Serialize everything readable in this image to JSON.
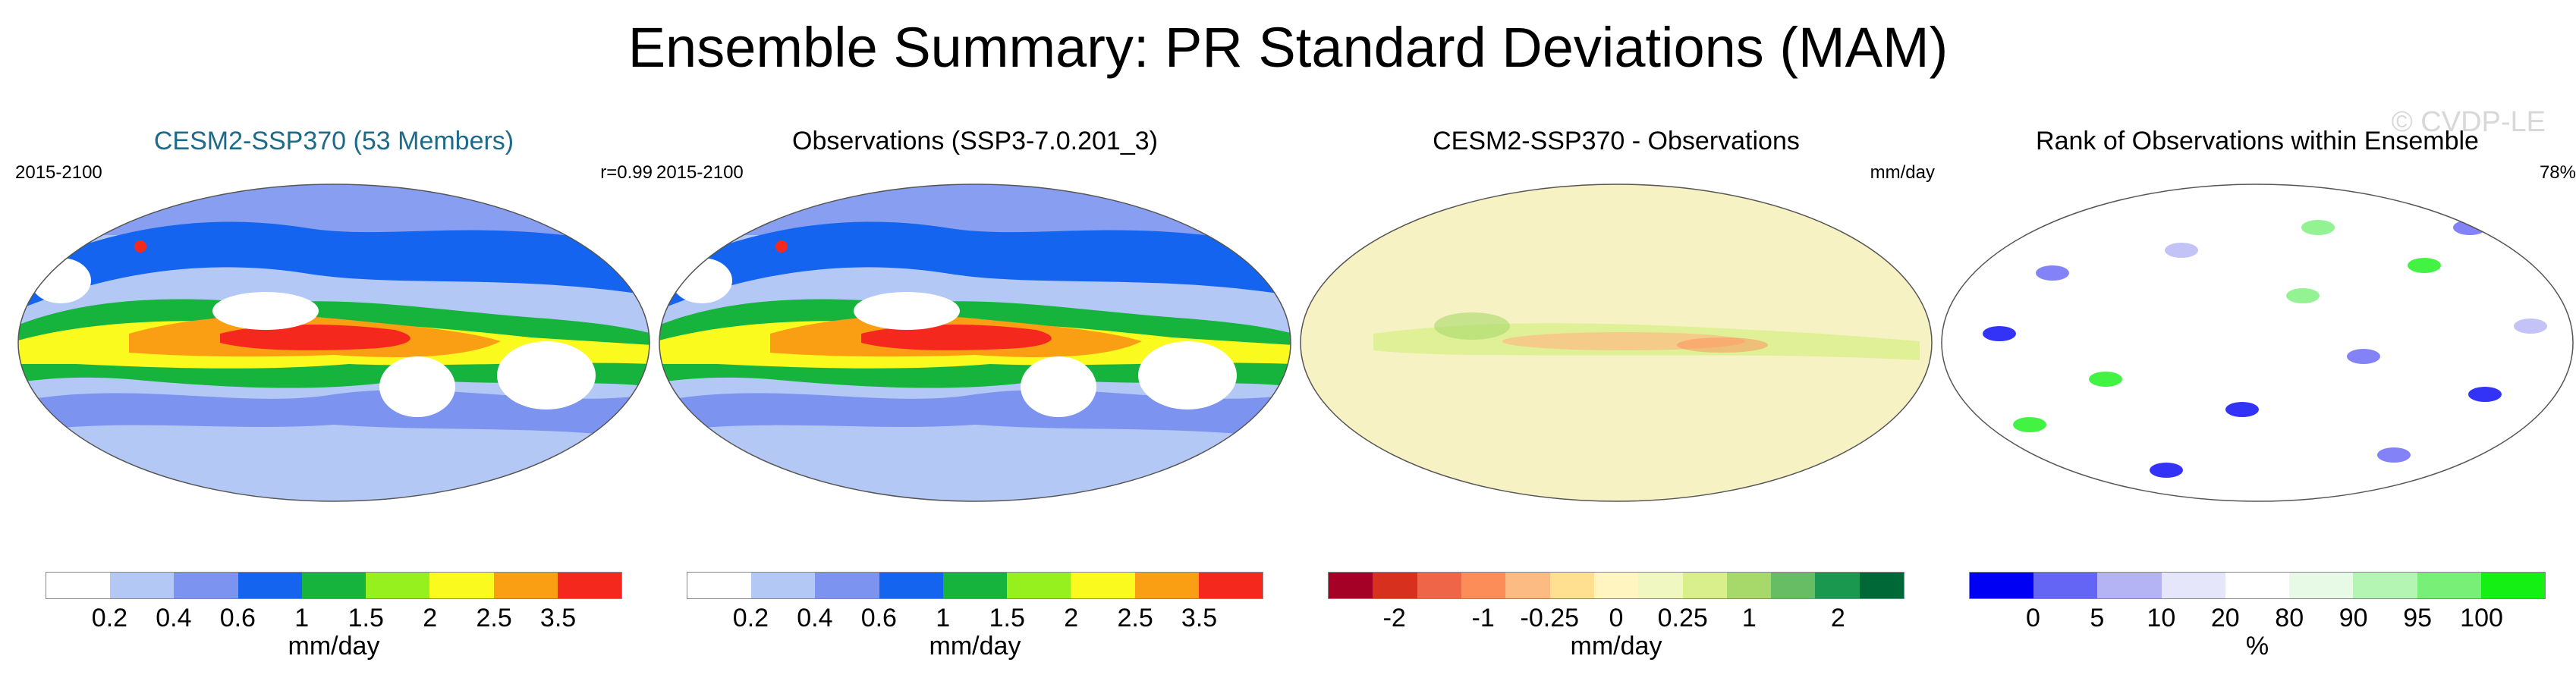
{
  "title": "Ensemble Summary: PR Standard Deviations (MAM)",
  "watermark": "© CVDP-LE",
  "panels": [
    {
      "title": "CESM2-SSP370 (53 Members)",
      "title_color": "#1d6b8a",
      "left_label": "2015-2100",
      "right_label": "r=0.99",
      "colors": [
        "#ffffff",
        "#b4c8f5",
        "#7c94f0",
        "#1464f0",
        "#16b43c",
        "#96f01e",
        "#fafa1e",
        "#fa9e14",
        "#f5281e"
      ],
      "ticks": [
        "0.2",
        "0.4",
        "0.6",
        "1",
        "1.5",
        "2",
        "2.5",
        "3.5"
      ],
      "units": "mm/day"
    },
    {
      "title": "Observations (SSP3-7.0.201_3)",
      "title_color": "#000000",
      "left_label": "2015-2100",
      "right_label": "",
      "colors": [
        "#ffffff",
        "#b4c8f5",
        "#7c94f0",
        "#1464f0",
        "#16b43c",
        "#96f01e",
        "#fafa1e",
        "#fa9e14",
        "#f5281e"
      ],
      "ticks": [
        "0.2",
        "0.4",
        "0.6",
        "1",
        "1.5",
        "2",
        "2.5",
        "3.5"
      ],
      "units": "mm/day"
    },
    {
      "title": "CESM2-SSP370 - Observations",
      "title_color": "#000000",
      "left_label": "",
      "right_label": "mm/day",
      "colors": [
        "#a50026",
        "#d7301f",
        "#ef6548",
        "#fc8d59",
        "#fdbb84",
        "#fee090",
        "#fff5c0",
        "#f0f7c0",
        "#d9ef8b",
        "#a6d96a",
        "#66bd63",
        "#1a9850",
        "#006837"
      ],
      "ticks": [
        "-2",
        "-1",
        "-0.25",
        "0",
        "0.25",
        "1",
        "2"
      ],
      "tick_positions": [
        1.5,
        3.5,
        5,
        6.5,
        8,
        9.5,
        11.5
      ],
      "units": "mm/day"
    },
    {
      "title": "Rank of Observations within Ensemble",
      "title_color": "#000000",
      "left_label": "",
      "right_label": "78%",
      "colors": [
        "#0000f5",
        "#6464f5",
        "#b4b4f5",
        "#e6e6fa",
        "#ffffff",
        "#e6fae6",
        "#b4f5b4",
        "#78f078",
        "#14f014"
      ],
      "ticks": [
        "0",
        "5",
        "10",
        "20",
        "80",
        "90",
        "95",
        "100"
      ],
      "units": "%"
    }
  ]
}
